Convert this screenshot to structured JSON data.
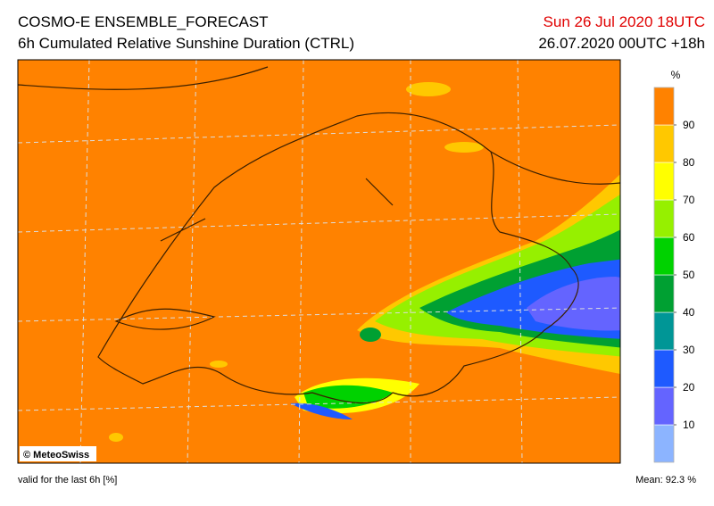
{
  "header": {
    "title": "COSMO-E ENSEMBLE_FORECAST",
    "subtitle": "6h Cumulated Relative Sunshine Duration (CTRL)",
    "valid_time": "Sun 26 Jul 2020 18UTC",
    "run_time": "26.07.2020 00UTC +18h"
  },
  "legend": {
    "unit": "%",
    "lim": [
      0,
      100
    ],
    "ticks": [
      10,
      20,
      30,
      40,
      50,
      60,
      70,
      80,
      90
    ],
    "colors": [
      "#8cb4ff",
      "#6464ff",
      "#1e5aff",
      "#009696",
      "#00a032",
      "#00d200",
      "#96f000",
      "#ffff00",
      "#ffc800",
      "#ff8200"
    ]
  },
  "map": {
    "credit": "© MeteoSwiss"
  },
  "footer": {
    "note": "valid for the last 6h [%]",
    "mean": "Mean:  92.3 %"
  }
}
